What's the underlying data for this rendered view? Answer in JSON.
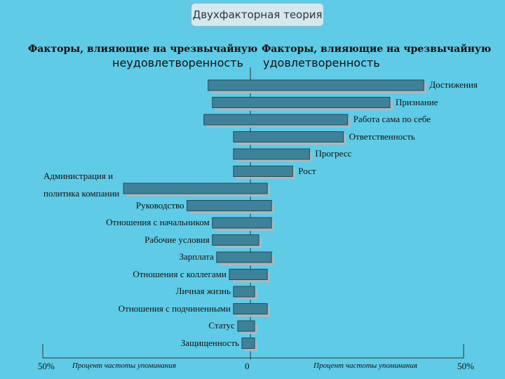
{
  "slide": {
    "title": "Двухфакторная теория",
    "left_header_line1": "Факторы, влияющие на чрезвычайную",
    "left_header_line2": "неудовлетворенность",
    "right_header_line1": "Факторы, влияющие на чрезвычайную",
    "right_header_line2": "удовлетворенность"
  },
  "chart_data": {
    "type": "bar",
    "orientation": "horizontal-diverging",
    "xlim": [
      -50,
      50
    ],
    "tick_labels": {
      "left": "50%",
      "center": "0",
      "right": "50%"
    },
    "xlabel_left": "Процент частоты упоминания",
    "xlabel_right": "Процент частоты упоминания",
    "bar_color": "#3d8299",
    "bar_shadow": "#a9b8bf",
    "axis_color": "#333333",
    "series": [
      {
        "label": "Достижения",
        "label_side": "right",
        "dissatisfaction": 10,
        "satisfaction": 41
      },
      {
        "label": "Признание",
        "label_side": "right",
        "dissatisfaction": 9,
        "satisfaction": 33
      },
      {
        "label": "Работа сама по себе",
        "label_side": "right",
        "dissatisfaction": 11,
        "satisfaction": 23
      },
      {
        "label": "Ответственность",
        "label_side": "right",
        "dissatisfaction": 4,
        "satisfaction": 22
      },
      {
        "label": "Прогресс",
        "label_side": "right",
        "dissatisfaction": 4,
        "satisfaction": 14
      },
      {
        "label": "Рост",
        "label_side": "right",
        "dissatisfaction": 4,
        "satisfaction": 10
      },
      {
        "label": "Администрация и политика компании",
        "label_side": "left-far",
        "dissatisfaction": 30,
        "satisfaction": 4
      },
      {
        "label": "Руководство",
        "label_side": "left",
        "dissatisfaction": 15,
        "satisfaction": 5
      },
      {
        "label": "Отношения с начальником",
        "label_side": "left",
        "dissatisfaction": 9,
        "satisfaction": 5
      },
      {
        "label": "Рабочие условия",
        "label_side": "left",
        "dissatisfaction": 9,
        "satisfaction": 2
      },
      {
        "label": "Зарплата",
        "label_side": "left",
        "dissatisfaction": 8,
        "satisfaction": 5
      },
      {
        "label": "Отношения с коллегами",
        "label_side": "left",
        "dissatisfaction": 5,
        "satisfaction": 4
      },
      {
        "label": "Личная жизнь",
        "label_side": "left",
        "dissatisfaction": 4,
        "satisfaction": 1
      },
      {
        "label": "Отношения с подчиненными",
        "label_side": "left",
        "dissatisfaction": 4,
        "satisfaction": 4
      },
      {
        "label": "Статус",
        "label_side": "left",
        "dissatisfaction": 3,
        "satisfaction": 1
      },
      {
        "label": "Защищенность",
        "label_side": "left",
        "dissatisfaction": 2,
        "satisfaction": 1
      }
    ]
  }
}
